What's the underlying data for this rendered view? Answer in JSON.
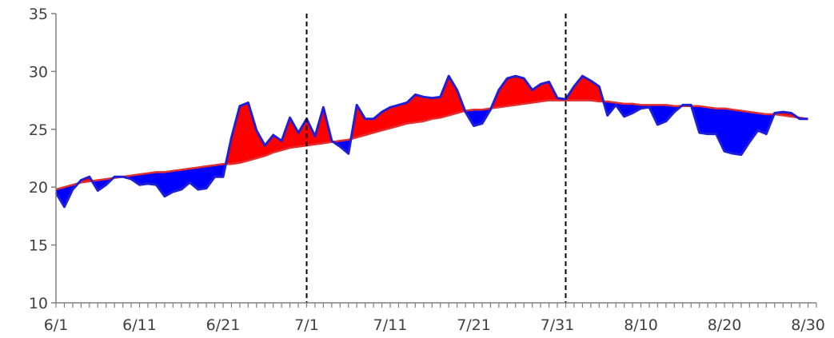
{
  "chart_data": {
    "type": "area",
    "title": "",
    "xlabel": "",
    "ylabel": "",
    "ylim": [
      10,
      35
    ],
    "yticks": [
      10,
      15,
      20,
      25,
      30,
      35
    ],
    "xlim": [
      0,
      91
    ],
    "x_tick_labels": [
      {
        "day": 0,
        "label": "6/1"
      },
      {
        "day": 10,
        "label": "6/11"
      },
      {
        "day": 20,
        "label": "6/21"
      },
      {
        "day": 30,
        "label": "7/1"
      },
      {
        "day": 40,
        "label": "7/11"
      },
      {
        "day": 50,
        "label": "7/21"
      },
      {
        "day": 60,
        "label": "7/31"
      },
      {
        "day": 70,
        "label": "8/10"
      },
      {
        "day": 80,
        "label": "8/20"
      },
      {
        "day": 90,
        "label": "8/30"
      }
    ],
    "reference_lines_x": [
      30,
      61
    ],
    "grid": false,
    "colors": {
      "above_normal_fill": "#ff0000",
      "below_normal_fill": "#0000ff",
      "observed_line": "#1f1fd6",
      "normal_line": "#e03030",
      "axis": "#808080"
    },
    "series": [
      {
        "values": [
          19.5,
          18.3,
          19.8,
          20.6,
          20.9,
          19.7,
          20.2,
          20.9,
          20.9,
          20.7,
          20.2,
          20.3,
          20.2,
          19.2,
          19.6,
          19.8,
          20.4,
          19.8,
          19.9,
          20.9,
          20.9,
          24.3,
          27.0,
          27.3,
          24.9,
          23.6,
          24.5,
          24.0,
          26.0,
          24.7,
          25.9,
          24.4,
          26.9,
          24.0,
          23.5,
          22.9,
          27.1,
          25.9,
          25.9,
          26.5,
          26.9,
          27.1,
          27.3,
          28.0,
          27.8,
          27.7,
          27.8,
          29.6,
          28.4,
          26.5,
          25.3,
          25.5,
          26.7,
          28.4,
          29.4,
          29.6,
          29.4,
          28.4,
          28.9,
          29.1,
          27.7,
          27.6,
          28.7,
          29.6,
          29.2,
          28.7,
          26.2,
          27.1,
          26.1,
          26.4,
          26.8,
          26.9,
          25.4,
          25.7,
          26.5,
          27.1,
          27.1,
          24.7,
          24.6,
          24.6,
          23.1,
          22.9,
          22.8,
          23.9,
          24.9,
          24.6,
          26.4,
          26.5,
          26.4,
          25.9,
          25.9
        ]
      },
      {
        "values": [
          19.8,
          20.0,
          20.2,
          20.4,
          20.5,
          20.6,
          20.7,
          20.8,
          20.9,
          21.0,
          21.1,
          21.2,
          21.3,
          21.3,
          21.4,
          21.5,
          21.6,
          21.7,
          21.8,
          21.9,
          22.0,
          22.0,
          22.1,
          22.3,
          22.5,
          22.7,
          23.0,
          23.2,
          23.4,
          23.5,
          23.6,
          23.7,
          23.8,
          23.9,
          24.0,
          24.1,
          24.3,
          24.5,
          24.7,
          24.9,
          25.1,
          25.3,
          25.5,
          25.6,
          25.7,
          25.9,
          26.0,
          26.2,
          26.4,
          26.6,
          26.7,
          26.7,
          26.8,
          26.9,
          27.0,
          27.1,
          27.2,
          27.3,
          27.4,
          27.5,
          27.5,
          27.5,
          27.5,
          27.5,
          27.5,
          27.4,
          27.4,
          27.3,
          27.2,
          27.2,
          27.1,
          27.1,
          27.1,
          27.1,
          27.0,
          27.0,
          27.0,
          27.0,
          26.9,
          26.8,
          26.8,
          26.7,
          26.6,
          26.5,
          26.4,
          26.3,
          26.3,
          26.2,
          26.1,
          26.0,
          25.9
        ]
      }
    ]
  }
}
